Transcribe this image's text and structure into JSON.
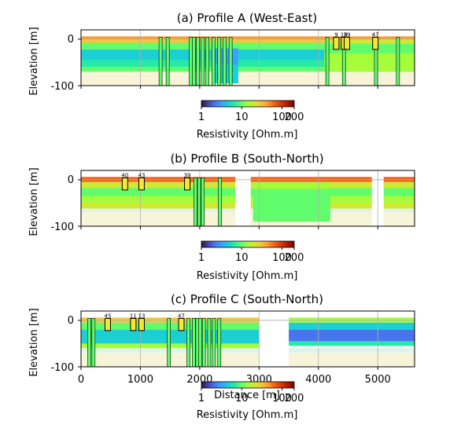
{
  "colorbar_colors": [
    "#30123b",
    "#4145ab",
    "#4675ed",
    "#39a2fc",
    "#1bcfd4",
    "#24eca6",
    "#61fc6c",
    "#a4fc3b",
    "#d1e834",
    "#f3c63a",
    "#fe9b2d",
    "#f36315",
    "#d93806",
    "#b11901",
    "#7a0402"
  ],
  "background_colors": {
    "deep": "#f7f4d8",
    "mid": "#dff3ea"
  },
  "chart_data": [
    {
      "type": "heatmap",
      "title": "(a) Profile A (West-East)",
      "ylabel": "Elevation [m]",
      "xlabel": "",
      "xlim": [
        0,
        5620
      ],
      "ylim": [
        -100,
        20
      ],
      "yticks": [
        0,
        -100
      ],
      "xticks_shown": false,
      "grid": true,
      "colorbar": {
        "label": "Resistivity [Ohm.m]",
        "scale": "log",
        "range": [
          1,
          200
        ],
        "ticks": [
          "1",
          "10",
          "100",
          "200"
        ]
      },
      "boreholes": [
        {
          "label": "9",
          "x": 4300
        },
        {
          "label": "10",
          "x": 4430
        },
        {
          "label": "39",
          "x": 4480
        },
        {
          "label": "47",
          "x": 4960
        }
      ],
      "wells": [
        1340,
        1460,
        1850,
        1900,
        1970,
        2050,
        2130,
        2230,
        2330,
        2420,
        2520,
        4150,
        4430,
        4970,
        5340
      ]
    },
    {
      "type": "heatmap",
      "title": "(b) Profile B (South-North)",
      "ylabel": "Elevation [m]",
      "xlabel": "",
      "xlim": [
        0,
        5620
      ],
      "ylim": [
        -100,
        20
      ],
      "yticks": [
        0,
        -100
      ],
      "xticks_shown": false,
      "grid": true,
      "colorbar": {
        "label": "Resistivity [Ohm.m]",
        "scale": "log",
        "range": [
          1,
          200
        ],
        "ticks": [
          "1",
          "10",
          "100",
          "200"
        ]
      },
      "boreholes": [
        {
          "label": "40",
          "x": 740
        },
        {
          "label": "43",
          "x": 1020
        },
        {
          "label": "39",
          "x": 1790
        }
      ],
      "wells": [
        1930,
        1990,
        2050,
        2340
      ]
    },
    {
      "type": "heatmap",
      "title": "(c) Profile C (South-North)",
      "ylabel": "Elevation [m]",
      "xlabel": "Distance [m]",
      "xlim": [
        0,
        5620
      ],
      "ylim": [
        -100,
        20
      ],
      "yticks": [
        0,
        -100
      ],
      "xticks": [
        0,
        1000,
        2000,
        3000,
        4000,
        5000
      ],
      "grid": true,
      "colorbar": {
        "label": "Resistivity [Ohm.m]",
        "scale": "log",
        "range": [
          1,
          200
        ],
        "ticks": [
          "1",
          "10",
          "100",
          "200"
        ]
      },
      "boreholes": [
        {
          "label": "45",
          "x": 450
        },
        {
          "label": "11",
          "x": 880
        },
        {
          "label": "13",
          "x": 1020
        },
        {
          "label": "47",
          "x": 1690
        }
      ],
      "wells": [
        140,
        210,
        1480,
        1810,
        1900,
        1960,
        2010,
        2070,
        2160,
        2240,
        2330
      ]
    }
  ]
}
